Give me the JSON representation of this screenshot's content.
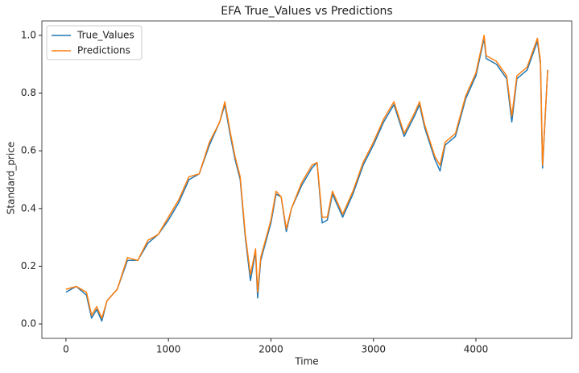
{
  "chart_data": {
    "type": "line",
    "title": "EFA True_Values vs Predictions",
    "xlabel": "Time",
    "ylabel": "Standard_price",
    "x": [
      0,
      100,
      200,
      250,
      300,
      350,
      400,
      500,
      600,
      700,
      800,
      900,
      1000,
      1100,
      1200,
      1300,
      1400,
      1500,
      1550,
      1600,
      1650,
      1700,
      1750,
      1800,
      1850,
      1870,
      1900,
      2000,
      2050,
      2100,
      2150,
      2200,
      2300,
      2400,
      2450,
      2500,
      2550,
      2600,
      2700,
      2800,
      2900,
      3000,
      3100,
      3200,
      3300,
      3400,
      3450,
      3500,
      3600,
      3650,
      3700,
      3800,
      3900,
      4000,
      4080,
      4100,
      4200,
      4300,
      4350,
      4400,
      4500,
      4600,
      4630,
      4650,
      4700
    ],
    "series": [
      {
        "name": "True_Values",
        "color": "#1f77b4",
        "values": [
          0.11,
          0.13,
          0.1,
          0.02,
          0.05,
          0.01,
          0.08,
          0.12,
          0.22,
          0.22,
          0.28,
          0.31,
          0.36,
          0.42,
          0.5,
          0.52,
          0.62,
          0.7,
          0.76,
          0.66,
          0.57,
          0.5,
          0.3,
          0.15,
          0.25,
          0.09,
          0.22,
          0.35,
          0.45,
          0.44,
          0.32,
          0.4,
          0.48,
          0.54,
          0.56,
          0.35,
          0.36,
          0.45,
          0.37,
          0.45,
          0.55,
          0.62,
          0.7,
          0.76,
          0.65,
          0.72,
          0.76,
          0.68,
          0.57,
          0.53,
          0.62,
          0.65,
          0.78,
          0.86,
          0.99,
          0.92,
          0.9,
          0.85,
          0.7,
          0.85,
          0.88,
          0.98,
          0.9,
          0.54,
          0.88
        ]
      },
      {
        "name": "Predictions",
        "color": "#ff7f0e",
        "values": [
          0.12,
          0.13,
          0.11,
          0.03,
          0.06,
          0.02,
          0.08,
          0.12,
          0.23,
          0.22,
          0.29,
          0.31,
          0.37,
          0.43,
          0.51,
          0.52,
          0.63,
          0.7,
          0.77,
          0.67,
          0.58,
          0.51,
          0.31,
          0.17,
          0.26,
          0.11,
          0.23,
          0.36,
          0.46,
          0.44,
          0.33,
          0.4,
          0.49,
          0.55,
          0.56,
          0.37,
          0.37,
          0.46,
          0.38,
          0.46,
          0.56,
          0.63,
          0.71,
          0.77,
          0.66,
          0.73,
          0.77,
          0.69,
          0.58,
          0.55,
          0.63,
          0.66,
          0.79,
          0.87,
          1.0,
          0.93,
          0.91,
          0.86,
          0.72,
          0.86,
          0.89,
          0.99,
          0.91,
          0.55,
          0.88
        ]
      }
    ],
    "xlim": [
      -235,
      4935
    ],
    "ylim": [
      -0.05,
      1.05
    ],
    "xticks": [
      0,
      1000,
      2000,
      3000,
      4000
    ],
    "yticks": [
      {
        "value": 0,
        "label": "0.0"
      },
      0.2,
      0.4,
      0.6,
      0.8,
      {
        "value": 1,
        "label": "1.0"
      }
    ],
    "legend": "upper left"
  }
}
